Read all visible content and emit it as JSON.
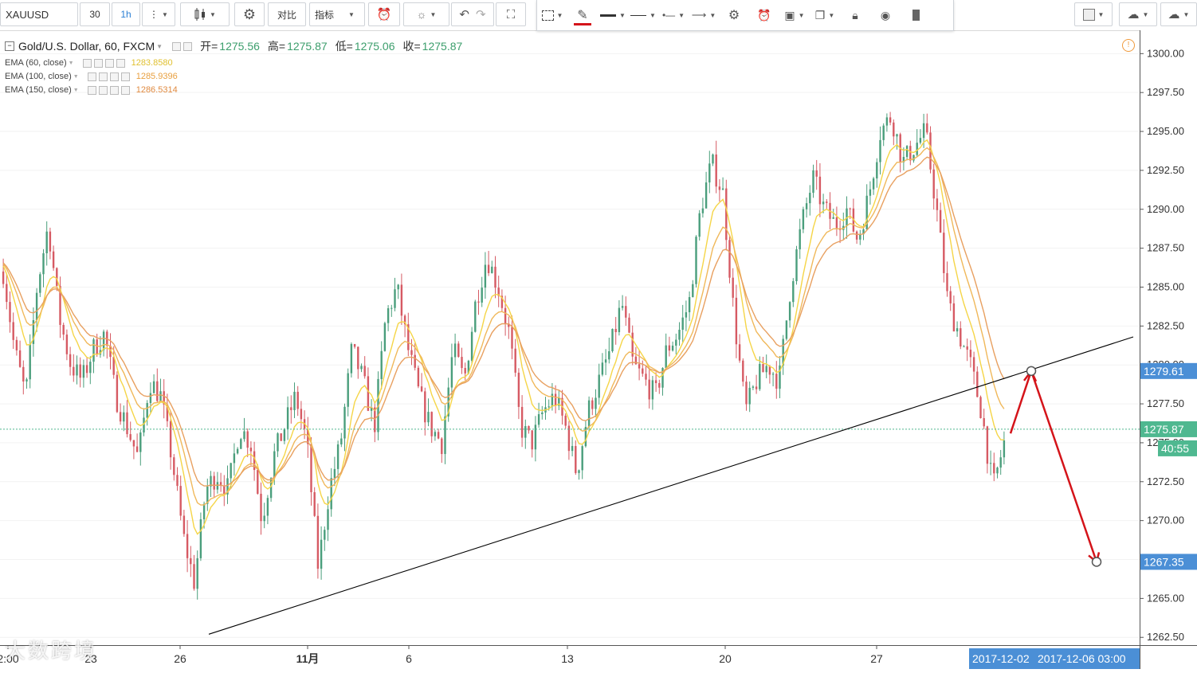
{
  "toolbar": {
    "symbol": "XAUUSD",
    "interval_value": "30",
    "interval_unit": "1h",
    "compare_label": "对比",
    "indicators_label": "指标"
  },
  "legend": {
    "title": "Gold/U.S. Dollar, 60, FXCM",
    "open_label": "开=",
    "open": "1275.56",
    "high_label": "高=",
    "high": "1275.87",
    "low_label": "低=",
    "low": "1275.06",
    "close_label": "收=",
    "close": "1275.87",
    "ema": [
      {
        "label": "EMA (60, close)",
        "value": "1283.8580",
        "color": "#f5d547"
      },
      {
        "label": "EMA (100, close)",
        "value": "1285.9396",
        "color": "#f0b85a"
      },
      {
        "label": "EMA (150, close)",
        "value": "1286.5314",
        "color": "#e8a060"
      }
    ]
  },
  "colors": {
    "up": "#4a9e7c",
    "down": "#d65a63",
    "trendline": "#000000",
    "projection": "#d4141a",
    "price_tag": "#4b8fd6",
    "last_tag": "#4fb890"
  },
  "y_axis": {
    "ticks": [
      "1300.00",
      "1297.50",
      "1295.00",
      "1292.50",
      "1290.00",
      "1287.50",
      "1285.00",
      "1282.50",
      "1280.00",
      "1277.50",
      "1275.00",
      "1272.50",
      "1270.00",
      "1267.50",
      "1265.00",
      "1262.50"
    ],
    "tags": {
      "upper_target": "1279.61",
      "last_price": "1275.87",
      "countdown": "40:55",
      "lower_target": "1267.35"
    }
  },
  "x_axis": {
    "ticks": [
      "2:00",
      "23",
      "26",
      "11月",
      "6",
      "13",
      "20",
      "27"
    ],
    "cursor_labels": [
      "2017-12-02",
      "2017-12-06 03:00"
    ]
  },
  "chart_data": {
    "type": "candlestick",
    "symbol": "XAUUSD",
    "timeframe": "60",
    "last_price": 1275.87,
    "ylim": [
      1262.0,
      1301.5
    ],
    "x_ticks": [
      "2:00",
      "23",
      "26",
      "11月",
      "6",
      "13",
      "20",
      "27"
    ],
    "series": [
      {
        "name": "EMA (60, close)",
        "last": 1283.858
      },
      {
        "name": "EMA (100, close)",
        "last": 1285.9396
      },
      {
        "name": "EMA (150, close)",
        "last": 1286.5314
      }
    ],
    "price_path": [
      1286,
      1281,
      1278,
      1285,
      1289,
      1283,
      1280,
      1279,
      1281,
      1282,
      1278,
      1276,
      1274,
      1279,
      1278,
      1274,
      1269,
      1266,
      1272,
      1273,
      1272,
      1276,
      1275,
      1270,
      1274,
      1276,
      1278,
      1275,
      1267,
      1272,
      1275,
      1281,
      1279,
      1276,
      1283,
      1285,
      1281,
      1278,
      1276,
      1275,
      1281,
      1279,
      1284,
      1287,
      1285,
      1282,
      1276,
      1275,
      1277,
      1278,
      1276,
      1273,
      1277,
      1279,
      1281,
      1284,
      1280,
      1279,
      1278,
      1281,
      1282,
      1284,
      1290,
      1293,
      1291,
      1283,
      1277,
      1279,
      1280,
      1279,
      1285,
      1289,
      1292,
      1290,
      1289,
      1290,
      1288,
      1291,
      1295,
      1296,
      1293,
      1294,
      1295,
      1290,
      1284,
      1282,
      1280,
      1277,
      1272,
      1275
    ],
    "annotations": {
      "trendline_price_start": 1262.7,
      "trendline_price_end": 1281.8,
      "projection_points": [
        1275.6,
        1279.61,
        1267.35
      ]
    }
  }
}
